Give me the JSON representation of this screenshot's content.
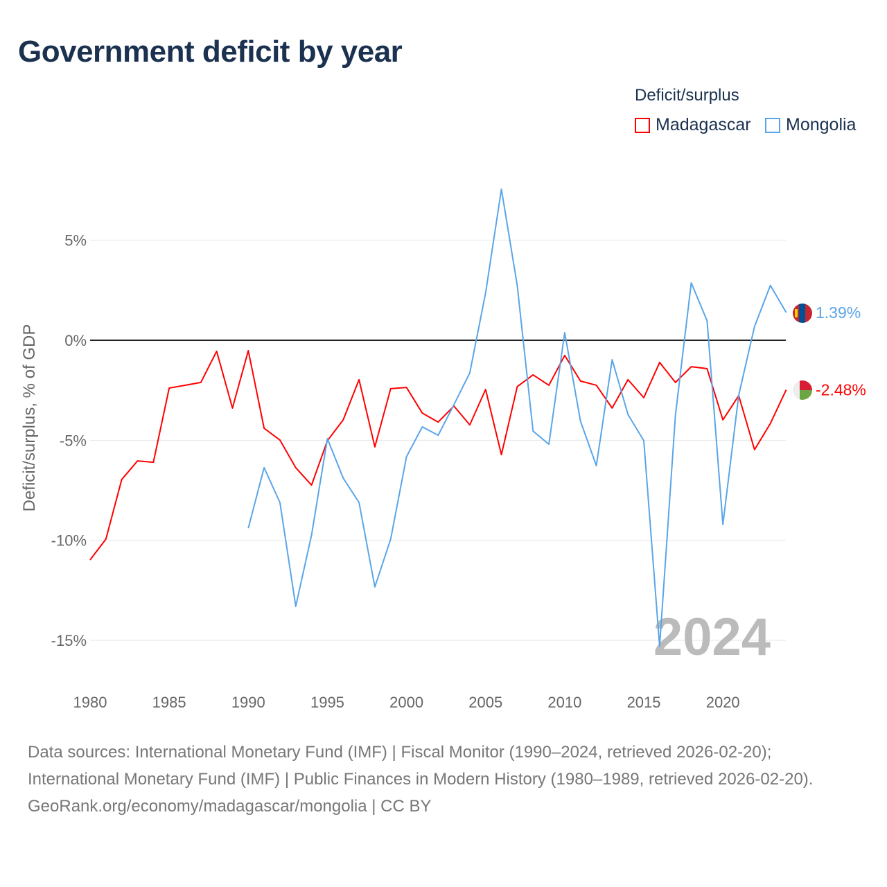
{
  "title": "Government deficit by year",
  "legend": {
    "title": "Deficit/surplus",
    "items": [
      {
        "label": "Madagascar",
        "color": "#ff0000"
      },
      {
        "label": "Mongolia",
        "color": "#5aa5e8"
      }
    ]
  },
  "year_watermark": "2024",
  "footer": {
    "sources": "Data sources: International Monetary Fund (IMF) | Fiscal Monitor (1990–2024, retrieved 2026-02-20); International Monetary Fund (IMF) | Public Finances in Modern History (1980–1989, retrieved 2026-02-20).",
    "credit": "GeoRank.org/economy/madagascar/mongolia | CC BY"
  },
  "chart_data": {
    "type": "line",
    "title": "Government deficit by year",
    "xlabel": "",
    "ylabel": "Deficit/surplus, % of GDP",
    "xlim": [
      1980,
      2024
    ],
    "ylim": [
      -17,
      8
    ],
    "x_ticks": [
      1980,
      1985,
      1990,
      1995,
      2000,
      2005,
      2010,
      2015,
      2020
    ],
    "x_tick_labels": [
      "1980",
      "1985",
      "1990",
      "1995",
      "2000",
      "2005",
      "2010",
      "2015",
      "2020"
    ],
    "y_ticks": [
      5,
      0,
      -5,
      -10,
      -15
    ],
    "y_tick_labels": [
      "5%",
      "0%",
      "-5%",
      "-10%",
      "-15%"
    ],
    "grid": true,
    "legend_position": "top-right",
    "series": [
      {
        "name": "Madagascar",
        "color": "#ff0000",
        "end_label": "-2.48%",
        "start_year": 1980,
        "values": [
          -10.98,
          -9.94,
          -6.96,
          -6.03,
          -6.1,
          -2.39,
          -2.25,
          -2.11,
          -0.55,
          -3.39,
          -0.52,
          -4.4,
          -4.99,
          -6.37,
          -7.24,
          -5.02,
          -3.98,
          -1.97,
          -5.33,
          -2.42,
          -2.36,
          -3.64,
          -4.09,
          -3.29,
          -4.23,
          -2.46,
          -5.72,
          -2.32,
          -1.73,
          -2.25,
          -0.76,
          -2.04,
          -2.25,
          -3.39,
          -1.97,
          -2.87,
          -1.11,
          -2.11,
          -1.32,
          -1.42,
          -3.98,
          -2.77,
          -5.47,
          -4.16,
          -2.48
        ]
      },
      {
        "name": "Mongolia",
        "color": "#5aa5e8",
        "end_label": "1.39%",
        "start_year": 1990,
        "values": [
          -9.39,
          -6.37,
          -8.11,
          -13.3,
          -9.73,
          -4.92,
          -6.89,
          -8.11,
          -12.33,
          -9.94,
          -5.82,
          -4.33,
          -4.75,
          -3.22,
          -1.63,
          2.36,
          7.55,
          2.74,
          -4.54,
          -5.2,
          0.38,
          -4.05,
          -6.27,
          -0.97,
          -3.71,
          -5.02,
          -15.3,
          -3.74,
          2.87,
          0.97,
          -9.21,
          -2.74,
          0.69,
          2.74,
          1.39
        ]
      }
    ]
  }
}
